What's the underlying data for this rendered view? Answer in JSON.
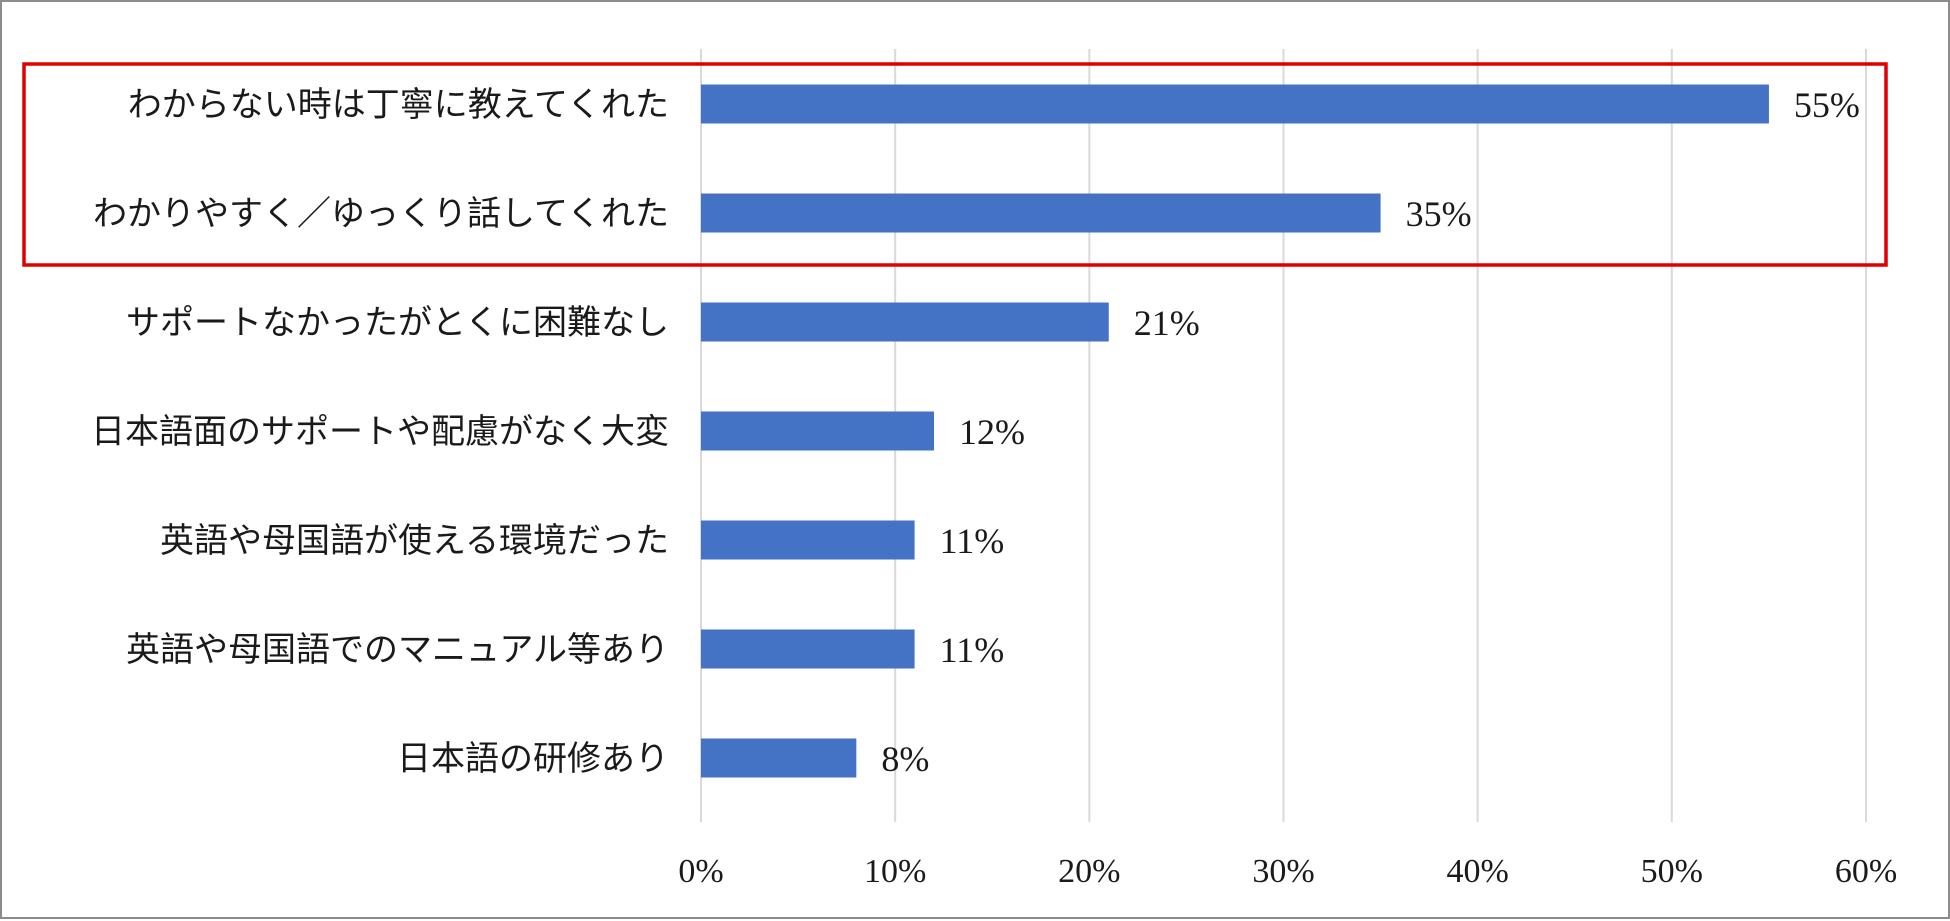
{
  "chart_data": {
    "type": "bar",
    "orientation": "horizontal",
    "categories": [
      "わからない時は丁寧に教えてくれた",
      "わかりやすく／ゆっくり話してくれた",
      "サポートなかったがとくに困難なし",
      "日本語面のサポートや配慮がなく大変",
      "英語や母国語が使える環境だった",
      "英語や母国語でのマニュアル等あり",
      "日本語の研修あり"
    ],
    "values": [
      55,
      35,
      21,
      12,
      11,
      11,
      8
    ],
    "value_labels": [
      "55%",
      "35%",
      "21%",
      "12%",
      "11%",
      "11%",
      "8%"
    ],
    "xlim": [
      0,
      60
    ],
    "ticks": [
      0,
      10,
      20,
      30,
      40,
      50,
      60
    ],
    "tick_labels": [
      "0%",
      "10%",
      "20%",
      "30%",
      "40%",
      "50%",
      "60%"
    ],
    "grid": true,
    "highlighted_categories": [
      0,
      1
    ],
    "colors": {
      "bar": "#4472c4",
      "grid": "#d9d9d9",
      "highlight_box": "#e00000",
      "frame": "#8c8c8c"
    }
  }
}
